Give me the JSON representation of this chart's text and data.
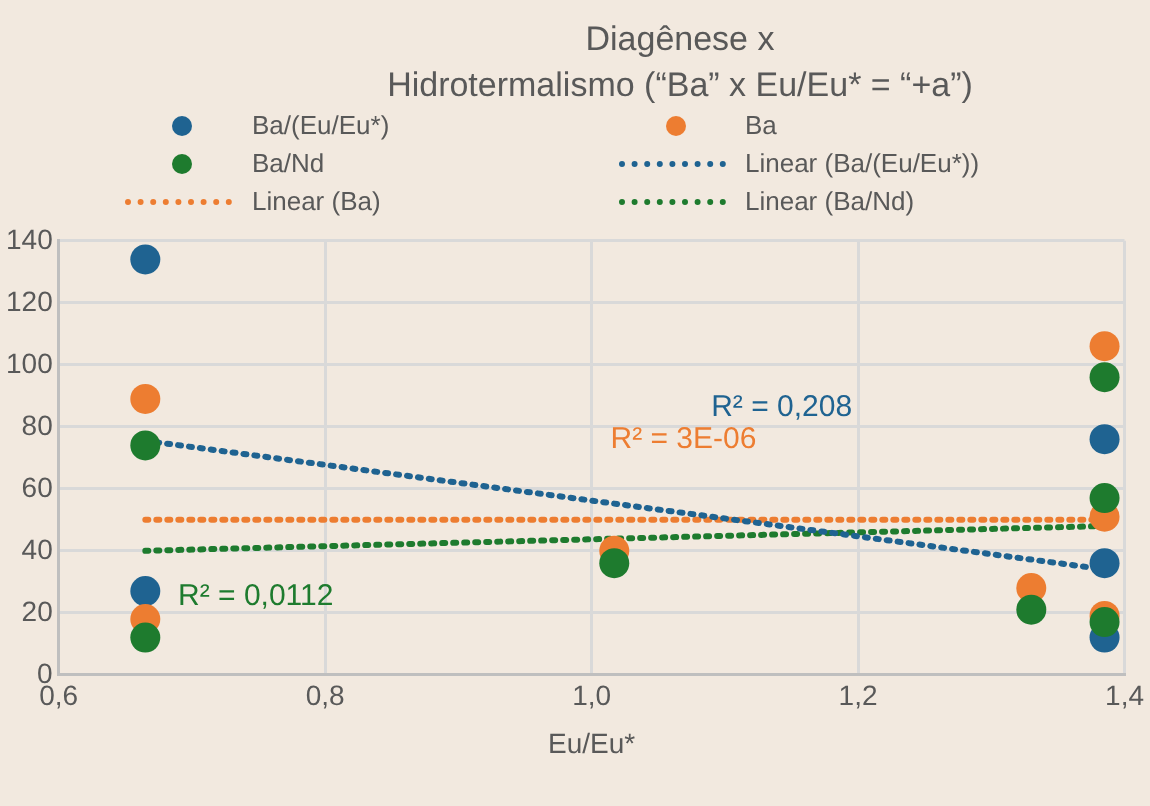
{
  "chart_data": {
    "type": "scatter",
    "title": "Diagênese x Hidrotermalismo (“Ba” x Eu/Eu* = “+a”)",
    "xlabel": "Eu/Eu*",
    "xlim": [
      0.6,
      1.4
    ],
    "xticks": [
      {
        "value": 0.6,
        "label": "0,6"
      },
      {
        "value": 0.8,
        "label": "0,8"
      },
      {
        "value": 1.0,
        "label": "1,0"
      },
      {
        "value": 1.2,
        "label": "1,2"
      },
      {
        "value": 1.4,
        "label": "1,4"
      }
    ],
    "ylim": [
      0,
      140
    ],
    "yticks": [
      0,
      20,
      40,
      60,
      80,
      100,
      120,
      140
    ],
    "grid": true,
    "legend": "top",
    "marker": "circle",
    "series": [
      {
        "name": "Ba/(Eu/Eu*)",
        "color": "#1f6391",
        "x": [
          0.665,
          0.665,
          1.385,
          1.385,
          1.385
        ],
        "values": [
          134,
          27,
          76,
          36,
          12
        ]
      },
      {
        "name": "Ba",
        "color": "#ed7d31",
        "x": [
          0.665,
          0.665,
          1.017,
          1.33,
          1.385,
          1.385,
          1.385
        ],
        "values": [
          89,
          18,
          40,
          28,
          106,
          51,
          19
        ]
      },
      {
        "name": "Ba/Nd",
        "color": "#1e7b2e",
        "x": [
          0.665,
          0.665,
          1.017,
          1.33,
          1.385,
          1.385,
          1.385
        ],
        "values": [
          74,
          12,
          36,
          21,
          96,
          57,
          17
        ]
      },
      {
        "name": "Linear (Ba/(Eu/Eu*))",
        "type": "line",
        "marker": "none",
        "line_style": "dotted",
        "color": "#1f6391",
        "x": [
          0.665,
          1.385
        ],
        "values": [
          75.5,
          34
        ]
      },
      {
        "name": "Linear (Ba)",
        "type": "line",
        "marker": "none",
        "line_style": "dotted",
        "color": "#ed7d31",
        "x": [
          0.665,
          1.385
        ],
        "values": [
          50,
          50
        ]
      },
      {
        "name": "Linear (Ba/Nd)",
        "type": "line",
        "marker": "none",
        "line_style": "dotted",
        "color": "#1e7b2e",
        "x": [
          0.665,
          1.385
        ],
        "values": [
          40,
          48
        ]
      }
    ],
    "annotations": [
      "R² = 0,208",
      "R² = 3E-06",
      "R² = 0,0112"
    ]
  }
}
